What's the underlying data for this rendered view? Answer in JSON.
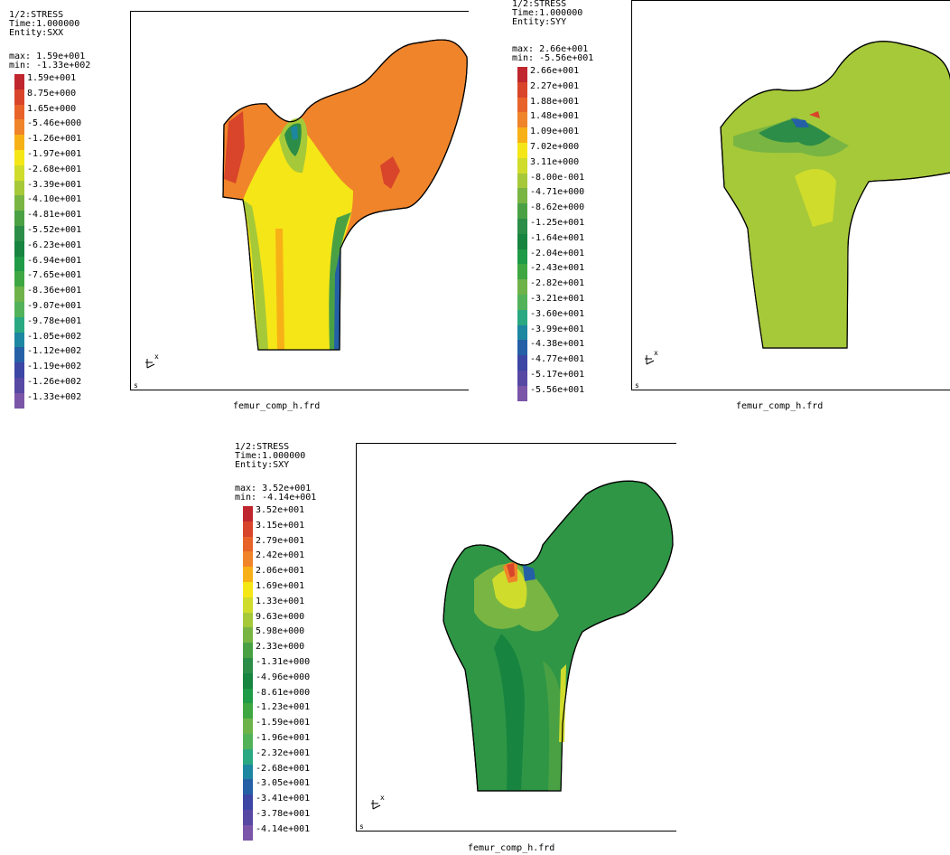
{
  "panels": [
    {
      "id": "sxx",
      "header": {
        "line1": "1/2:STRESS",
        "line2": "Time:1.000000",
        "line3": "Entity:SXX"
      },
      "max_text": "max: 1.59e+001",
      "min_text": "min: -1.33e+002",
      "corner_label": "s",
      "filename": "femur_comp_h.frd",
      "axis_label": "x",
      "legend": [
        {
          "label": "1.59e+001",
          "color": "#c0262d"
        },
        {
          "label": "8.75e+000",
          "color": "#d8452a"
        },
        {
          "label": "1.65e+000",
          "color": "#e8632a"
        },
        {
          "label": "-5.46e+000",
          "color": "#f0842a"
        },
        {
          "label": "-1.26e+001",
          "color": "#f7b117"
        },
        {
          "label": "-1.97e+001",
          "color": "#f5e617"
        },
        {
          "label": "-2.68e+001",
          "color": "#cfdc2c"
        },
        {
          "label": "-3.39e+001",
          "color": "#a6c939"
        },
        {
          "label": "-4.10e+001",
          "color": "#79b543"
        },
        {
          "label": "-4.81e+001",
          "color": "#4aa144"
        },
        {
          "label": "-5.52e+001",
          "color": "#2b8d47"
        },
        {
          "label": "-6.23e+001",
          "color": "#17843f"
        },
        {
          "label": "-6.94e+001",
          "color": "#1f9a47"
        },
        {
          "label": "-7.65e+001",
          "color": "#3ea742"
        },
        {
          "label": "-8.36e+001",
          "color": "#6db34a"
        },
        {
          "label": "-9.07e+001",
          "color": "#52b25a"
        },
        {
          "label": "-9.78e+001",
          "color": "#2aa882"
        },
        {
          "label": "-1.05e+002",
          "color": "#1d86a0"
        },
        {
          "label": "-1.12e+002",
          "color": "#2560a6"
        },
        {
          "label": "-1.19e+002",
          "color": "#3c46a4"
        },
        {
          "label": "-1.26e+002",
          "color": "#5648a3"
        },
        {
          "label": "-1.33e+002",
          "color": "#7a55a8"
        }
      ]
    },
    {
      "id": "syy",
      "header": {
        "line1": "1/2:STRESS",
        "line2": "Time:1.000000",
        "line3": "Entity:SYY"
      },
      "max_text": "max: 2.66e+001",
      "min_text": "min: -5.56e+001",
      "corner_label": "s",
      "filename": "femur_comp_h.frd",
      "axis_label": "x",
      "legend": [
        {
          "label": "2.66e+001",
          "color": "#c0262d"
        },
        {
          "label": "2.27e+001",
          "color": "#d8452a"
        },
        {
          "label": "1.88e+001",
          "color": "#e8632a"
        },
        {
          "label": "1.48e+001",
          "color": "#f0842a"
        },
        {
          "label": "1.09e+001",
          "color": "#f7b117"
        },
        {
          "label": "7.02e+000",
          "color": "#f5e617"
        },
        {
          "label": "3.11e+000",
          "color": "#cfdc2c"
        },
        {
          "label": "-8.00e-001",
          "color": "#a6c939"
        },
        {
          "label": "-4.71e+000",
          "color": "#79b543"
        },
        {
          "label": "-8.62e+000",
          "color": "#4aa144"
        },
        {
          "label": "-1.25e+001",
          "color": "#2b8d47"
        },
        {
          "label": "-1.64e+001",
          "color": "#17843f"
        },
        {
          "label": "-2.04e+001",
          "color": "#1f9a47"
        },
        {
          "label": "-2.43e+001",
          "color": "#3ea742"
        },
        {
          "label": "-2.82e+001",
          "color": "#6db34a"
        },
        {
          "label": "-3.21e+001",
          "color": "#52b25a"
        },
        {
          "label": "-3.60e+001",
          "color": "#2aa882"
        },
        {
          "label": "-3.99e+001",
          "color": "#1d86a0"
        },
        {
          "label": "-4.38e+001",
          "color": "#2560a6"
        },
        {
          "label": "-4.77e+001",
          "color": "#3c46a4"
        },
        {
          "label": "-5.17e+001",
          "color": "#5648a3"
        },
        {
          "label": "-5.56e+001",
          "color": "#7a55a8"
        }
      ]
    },
    {
      "id": "sxy",
      "header": {
        "line1": "1/2:STRESS",
        "line2": "Time:1.000000",
        "line3": "Entity:SXY"
      },
      "max_text": "max: 3.52e+001",
      "min_text": "min: -4.14e+001",
      "corner_label": "s",
      "filename": "femur_comp_h.frd",
      "axis_label": "x",
      "legend": [
        {
          "label": "3.52e+001",
          "color": "#c0262d"
        },
        {
          "label": "3.15e+001",
          "color": "#d8452a"
        },
        {
          "label": "2.79e+001",
          "color": "#e8632a"
        },
        {
          "label": "2.42e+001",
          "color": "#f0842a"
        },
        {
          "label": "2.06e+001",
          "color": "#f7b117"
        },
        {
          "label": "1.69e+001",
          "color": "#f5e617"
        },
        {
          "label": "1.33e+001",
          "color": "#cfdc2c"
        },
        {
          "label": "9.63e+000",
          "color": "#a6c939"
        },
        {
          "label": "5.98e+000",
          "color": "#79b543"
        },
        {
          "label": "2.33e+000",
          "color": "#4aa144"
        },
        {
          "label": "-1.31e+000",
          "color": "#2b8d47"
        },
        {
          "label": "-4.96e+000",
          "color": "#17843f"
        },
        {
          "label": "-8.61e+000",
          "color": "#1f9a47"
        },
        {
          "label": "-1.23e+001",
          "color": "#3ea742"
        },
        {
          "label": "-1.59e+001",
          "color": "#6db34a"
        },
        {
          "label": "-1.96e+001",
          "color": "#52b25a"
        },
        {
          "label": "-2.32e+001",
          "color": "#2aa882"
        },
        {
          "label": "-2.68e+001",
          "color": "#1d86a0"
        },
        {
          "label": "-3.05e+001",
          "color": "#2560a6"
        },
        {
          "label": "-3.41e+001",
          "color": "#3c46a4"
        },
        {
          "label": "-3.78e+001",
          "color": "#5648a3"
        },
        {
          "label": "-4.14e+001",
          "color": "#7a55a8"
        }
      ]
    }
  ],
  "colors": {
    "sxx_base": "#f0842a",
    "syy_base": "#a6c939",
    "sxy_base": "#2e9645"
  }
}
